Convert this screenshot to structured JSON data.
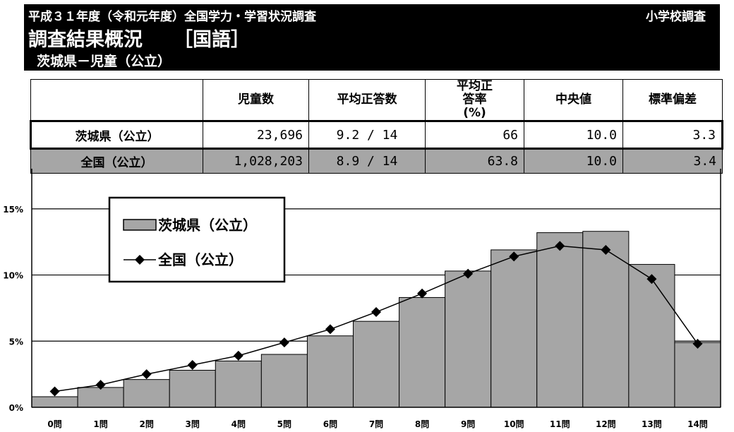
{
  "header": {
    "survey_title": "平成３１年度（令和元年度）全国学力・学習状況調査",
    "school_type": "小学校調査",
    "title": "調査結果概況",
    "subject": "［国語］",
    "population": "茨城県－児童（公立）"
  },
  "table": {
    "columns": [
      "児童数",
      "平均正答数",
      "平均正答率(%)",
      "中央値",
      "標準偏差"
    ],
    "rows": [
      {
        "label": "茨城県（公立）",
        "count": "23,696",
        "avg_correct": "9.2 / 14",
        "avg_rate": "66",
        "median": "10.0",
        "std_dev": "3.3"
      },
      {
        "label": "全国（公立）",
        "count": "1,028,203",
        "avg_correct": "8.9 / 14",
        "avg_rate": "63.8",
        "median": "10.0",
        "std_dev": "3.4"
      }
    ]
  },
  "chart_data": {
    "type": "bar",
    "categories": [
      "0問",
      "1問",
      "2問",
      "3問",
      "4問",
      "5問",
      "6問",
      "7問",
      "8問",
      "9問",
      "10問",
      "11問",
      "12問",
      "13問",
      "14問"
    ],
    "series": [
      {
        "name": "茨城県（公立）",
        "type": "bar",
        "color": "#a6a6a6",
        "values": [
          0.8,
          1.5,
          2.1,
          2.8,
          3.5,
          4.0,
          5.4,
          6.5,
          8.3,
          10.3,
          11.9,
          13.2,
          13.3,
          10.8,
          4.9
        ]
      },
      {
        "name": "全国（公立）",
        "type": "line",
        "marker": "diamond",
        "color": "#000000",
        "values": [
          1.2,
          1.7,
          2.5,
          3.2,
          3.9,
          4.9,
          5.9,
          7.2,
          8.6,
          10.1,
          11.4,
          12.2,
          11.9,
          9.7,
          4.8
        ]
      }
    ],
    "y_ticks": [
      "0%",
      "5%",
      "10%",
      "15%"
    ],
    "ylim": [
      0,
      17.5
    ],
    "grid": true,
    "legend_position": "top-left"
  }
}
